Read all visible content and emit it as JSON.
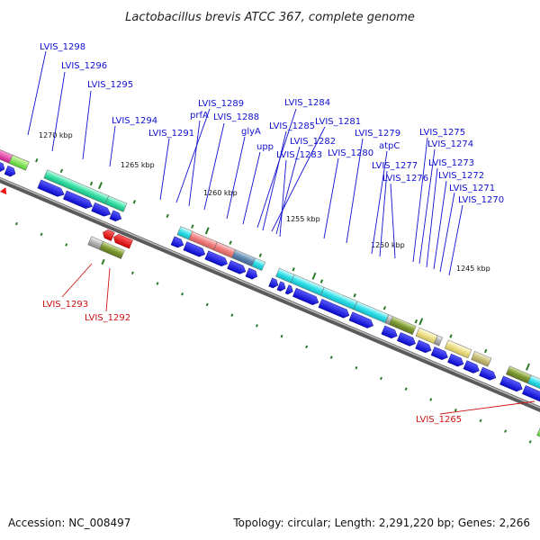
{
  "title": "Lactobacillus brevis ATCC 367, complete genome",
  "footer": {
    "accession": "Accession: NC_008497",
    "summary": "Topology: circular; Length: 2,291,220 bp; Genes: 2,266"
  },
  "colors": {
    "cds_arrow": "#1111ee",
    "reverse_arrow": "#ee1111",
    "label_forward": "#1010d0",
    "label_reverse": "#cc1111",
    "backbone": "#7a7a7a",
    "tick": "#2a7a2a"
  },
  "kbp_labels": [
    "1270 kbp",
    "1265 kbp",
    "1260 kbp",
    "1255 kbp",
    "1250 kbp",
    "1245 kbp"
  ],
  "forward_labels": [
    "LVIS_1298",
    "LVIS_1296",
    "LVIS_1295",
    "LVIS_1294",
    "LVIS_1291",
    "LVIS_1289",
    "prfA",
    "LVIS_1288",
    "glyA",
    "upp",
    "LVIS_1284",
    "LVIS_1285",
    "LVIS_1281",
    "LVIS_1282",
    "LVIS_1283",
    "LVIS_1280",
    "LVIS_1279",
    "atpC",
    "LVIS_1277",
    "LVIS_1276",
    "LVIS_1275",
    "LVIS_1274",
    "LVIS_1273",
    "LVIS_1272",
    "LVIS_1271",
    "LVIS_1270"
  ],
  "reverse_labels": [
    "LVIS_1293",
    "LVIS_1292",
    "LVIS_1265"
  ]
}
